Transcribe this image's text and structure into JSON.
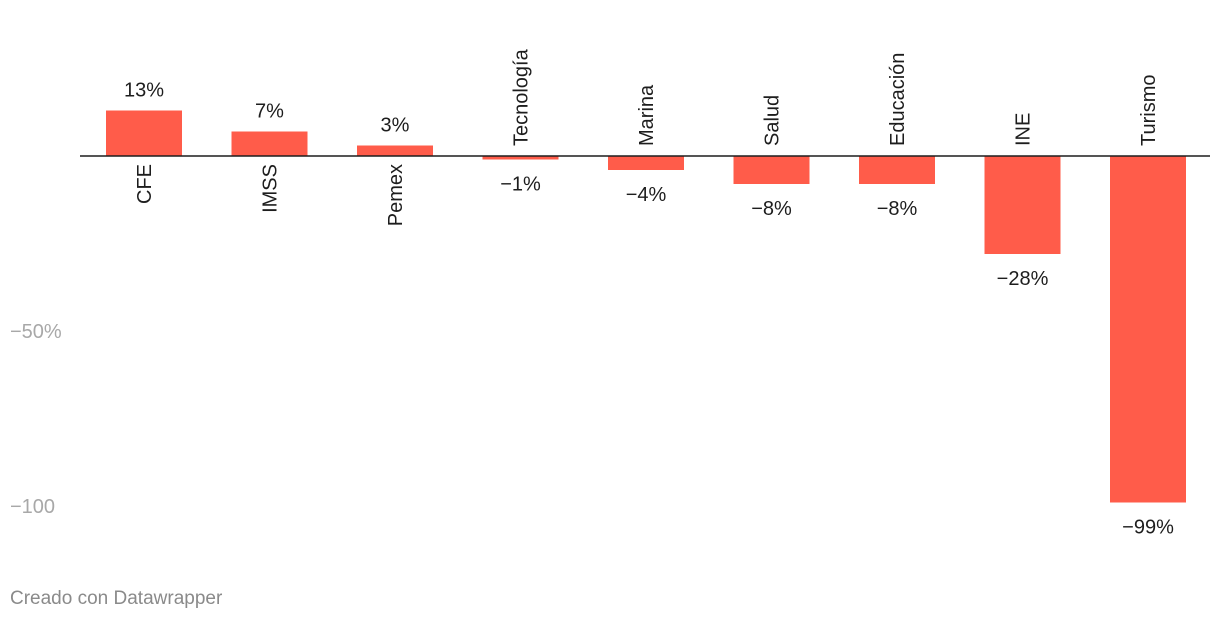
{
  "chart_data": {
    "type": "bar",
    "categories": [
      "CFE",
      "IMSS",
      "Pemex",
      "Tecnología",
      "Marina",
      "Salud",
      "Educación",
      "INE",
      "Turismo"
    ],
    "values": [
      13,
      7,
      3,
      -1,
      -4,
      -8,
      -8,
      -28,
      -99
    ],
    "value_labels": [
      "13%",
      "7%",
      "3%",
      "−1%",
      "−4%",
      "−8%",
      "−8%",
      "−28%",
      "−99%"
    ],
    "y_ticks": [
      {
        "value": -50,
        "label": "−50%"
      },
      {
        "value": -100,
        "label": "−100"
      }
    ],
    "ylim": [
      -100,
      13
    ],
    "grid": false,
    "legend": "none",
    "bar_color": "#ff5c4a",
    "axis_color": "#1d1d1d"
  },
  "footer": {
    "credit": "Creado con Datawrapper"
  }
}
